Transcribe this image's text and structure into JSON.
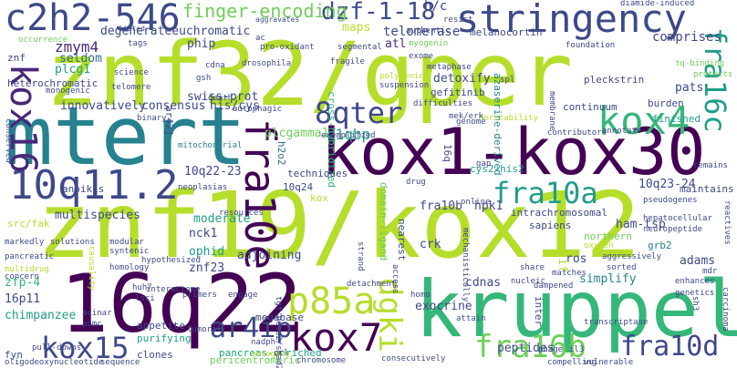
{
  "colors": {
    "background": "#ffffff",
    "palette": [
      "#440154",
      "#482878",
      "#3e4989",
      "#31688e",
      "#26828e",
      "#1f9e89",
      "#35b779",
      "#6ece58",
      "#b5de2b",
      "#fde725"
    ]
  },
  "words": [
    {
      "text": "znf32/gper",
      "color": "#b5de2b"
    },
    {
      "text": "znf19/kox12",
      "color": "#b5de2b"
    },
    {
      "text": "mtert",
      "color": "#26828e"
    },
    {
      "text": "kox1-kox30",
      "color": "#440154"
    },
    {
      "text": "16q22",
      "color": "#440154"
    },
    {
      "text": "kruppel",
      "color": "#35b779"
    },
    {
      "text": "stringency",
      "color": "#3e4989"
    },
    {
      "text": "c2h2-546",
      "color": "#3e4989"
    },
    {
      "text": "10q11.2",
      "color": "#3e4989"
    },
    {
      "text": "fra10e",
      "color": "#440154"
    },
    {
      "text": "kox16",
      "color": "#482878"
    },
    {
      "text": "fra16c",
      "color": "#1f9e89"
    },
    {
      "text": "kox4",
      "color": "#35b779"
    },
    {
      "text": "8qter",
      "color": "#3e4989"
    },
    {
      "text": "fra10a",
      "color": "#1f9e89"
    },
    {
      "text": "p85a",
      "color": "#b5de2b"
    },
    {
      "text": "kox15",
      "color": "#3e4989"
    },
    {
      "text": "kox7",
      "color": "#440154"
    },
    {
      "text": "ar4ip",
      "color": "#3e4989"
    },
    {
      "text": "dgki",
      "color": "#b5de2b"
    },
    {
      "text": "fra16b",
      "color": "#6ece58"
    },
    {
      "text": "fra10d",
      "color": "#3e4989"
    },
    {
      "text": "dzf-1-18",
      "color": "#3e4989"
    },
    {
      "text": "finger-encoding",
      "color": "#6ece58"
    },
    {
      "text": "zmym4",
      "color": "#482878"
    },
    {
      "text": "degenerateeuchromatic",
      "color": "#3e4989"
    },
    {
      "text": "phip",
      "color": "#3e4989"
    },
    {
      "text": "h/c",
      "color": "#3e4989"
    },
    {
      "text": "telomerase",
      "color": "#3e4989"
    },
    {
      "text": "melanocortin",
      "color": "#3e4989"
    },
    {
      "text": "comprises",
      "color": "#3e4989"
    },
    {
      "text": "plcg1",
      "color": "#1f9e89"
    },
    {
      "text": "seldom",
      "color": "#31688e"
    },
    {
      "text": "swiss-prot",
      "color": "#3e4989"
    },
    {
      "text": "atl",
      "color": "#482878"
    },
    {
      "text": "maps",
      "color": "#b5de2b"
    },
    {
      "text": "detoxify",
      "color": "#3e4989"
    },
    {
      "text": "gefitinib",
      "color": "#3e4989"
    },
    {
      "text": "pleckstrin",
      "color": "#3e4989"
    },
    {
      "text": "pats",
      "color": "#3e4989"
    },
    {
      "text": "innovatively",
      "color": "#3e4989"
    },
    {
      "text": "consensus",
      "color": "#3e4989"
    },
    {
      "text": "his/cys",
      "color": "#3e4989"
    },
    {
      "text": "cross-hybridized",
      "color": "#35b779"
    },
    {
      "text": "azaserine-derived",
      "color": "#26828e"
    },
    {
      "text": "continuum",
      "color": "#3e4989"
    },
    {
      "text": "burden",
      "color": "#3e4989"
    },
    {
      "text": "finished",
      "color": "#1f9e89"
    },
    {
      "text": "plcgamma1",
      "color": "#6ece58"
    },
    {
      "text": "c1qbp",
      "color": "#1f9e89"
    },
    {
      "text": "10q22-23",
      "color": "#3e4989"
    },
    {
      "text": "h2o2",
      "color": "#31688e"
    },
    {
      "text": "cys2-his2",
      "color": "#1f9e89"
    },
    {
      "text": "10q23-24",
      "color": "#3e4989"
    },
    {
      "text": "maintains",
      "color": "#3e4989"
    },
    {
      "text": "multispecies",
      "color": "#3e4989"
    },
    {
      "text": "moderate",
      "color": "#1f9e89"
    },
    {
      "text": "fra10b",
      "color": "#3e4989"
    },
    {
      "text": "hpk1",
      "color": "#3e4989"
    },
    {
      "text": "intrachromosomal",
      "color": "#3e4989"
    },
    {
      "text": "sapiens",
      "color": "#3e4989"
    },
    {
      "text": "nck1",
      "color": "#3e4989"
    },
    {
      "text": "ophid",
      "color": "#1f9e89"
    },
    {
      "text": "znf23",
      "color": "#3e4989"
    },
    {
      "text": "adjoining",
      "color": "#3e4989"
    },
    {
      "text": "crk",
      "color": "#3e4989"
    },
    {
      "text": "ham-tsp",
      "color": "#3e4989"
    },
    {
      "text": "grb2",
      "color": "#26828e"
    },
    {
      "text": "northern",
      "color": "#6ece58"
    },
    {
      "text": "ros",
      "color": "#3e4989"
    },
    {
      "text": "adams",
      "color": "#3e4989"
    },
    {
      "text": "motif",
      "color": "#b5de2b"
    },
    {
      "text": "cdnas",
      "color": "#3e4989"
    },
    {
      "text": "exocrine",
      "color": "#3e4989"
    },
    {
      "text": "simplify",
      "color": "#26828e"
    },
    {
      "text": "zfp-4",
      "color": "#35b779"
    },
    {
      "text": "16p11",
      "color": "#3e4989"
    },
    {
      "text": "chimpanzee",
      "color": "#1f9e89"
    },
    {
      "text": "megabase",
      "color": "#3e4989"
    },
    {
      "text": "pancreas-enriched",
      "color": "#1f9e89"
    },
    {
      "text": "peptides",
      "color": "#3e4989"
    },
    {
      "text": "appetite",
      "color": "#3e4989"
    },
    {
      "text": "purifying",
      "color": "#1f9e89"
    },
    {
      "text": "clones",
      "color": "#3e4989"
    },
    {
      "text": "pericentromeric",
      "color": "#6ece58"
    },
    {
      "text": "fyn",
      "color": "#3e4989"
    },
    {
      "text": "anoikis",
      "color": "#3e4989"
    },
    {
      "text": "src/fak",
      "color": "#b5de2b"
    },
    {
      "text": "10q24",
      "color": "#3e4989"
    },
    {
      "text": "kox",
      "color": "#b5de2b"
    },
    {
      "text": "nearest",
      "color": "#3e4989"
    },
    {
      "text": "domain-ligand",
      "color": "#6ece58"
    },
    {
      "text": "techniques",
      "color": "#3e4989"
    },
    {
      "text": "heterochromatic",
      "color": "#3e4989"
    },
    {
      "text": "znf",
      "color": "#3e4989"
    },
    {
      "text": "monogenic",
      "color": "#3e4989"
    },
    {
      "text": "occurrence",
      "color": "#6ece58"
    },
    {
      "text": "aggravates",
      "color": "#3e4989"
    },
    {
      "text": "diamide-induced",
      "color": "#3e4989"
    },
    {
      "text": "resist",
      "color": "#3e4989"
    },
    {
      "text": "listed",
      "color": "#3e4989"
    },
    {
      "text": "pro-oxidant",
      "color": "#3e4989"
    },
    {
      "text": "segmental",
      "color": "#3e4989"
    },
    {
      "text": "exome",
      "color": "#3e4989"
    },
    {
      "text": "myogenin",
      "color": "#6ece58"
    },
    {
      "text": "foundation",
      "color": "#3e4989"
    },
    {
      "text": "tq-binding",
      "color": "#6ece58"
    },
    {
      "text": "protects",
      "color": "#6ece58"
    },
    {
      "text": "polygenic",
      "color": "#b5de2b"
    },
    {
      "text": "suspension",
      "color": "#3e4989"
    },
    {
      "text": "metaphase",
      "color": "#3e4989"
    },
    {
      "text": "drosophila",
      "color": "#3e4989"
    },
    {
      "text": "fragile",
      "color": "#3e4989"
    },
    {
      "text": "science",
      "color": "#3e4989"
    },
    {
      "text": "telomere",
      "color": "#3e4989"
    },
    {
      "text": "death",
      "color": "#3e4989"
    },
    {
      "text": "autophagic",
      "color": "#3e4989"
    },
    {
      "text": "mitochondrial",
      "color": "#26828e"
    },
    {
      "text": "neoplasias",
      "color": "#3e4989"
    },
    {
      "text": "difficulties",
      "color": "#3e4989"
    },
    {
      "text": "heritability",
      "color": "#b5de2b"
    },
    {
      "text": "contributors",
      "color": "#3e4989"
    },
    {
      "text": "annotate",
      "color": "#3e4989"
    },
    {
      "text": "remains",
      "color": "#3e4989"
    },
    {
      "text": "exemplified",
      "color": "#3e4989"
    },
    {
      "text": "gap",
      "color": "#3e4989"
    },
    {
      "text": "resources",
      "color": "#3e4989"
    },
    {
      "text": "solutions",
      "color": "#3e4989"
    },
    {
      "text": "markedly",
      "color": "#3e4989"
    },
    {
      "text": "pancreatic",
      "color": "#3e4989"
    },
    {
      "text": "multidrug",
      "color": "#b5de2b"
    },
    {
      "text": "concern",
      "color": "#3e4989"
    },
    {
      "text": "causality",
      "color": "#b5de2b"
    },
    {
      "text": "modular",
      "color": "#3e4989"
    },
    {
      "text": "syntenic",
      "color": "#3e4989"
    },
    {
      "text": "homology",
      "color": "#3e4989"
    },
    {
      "text": "hypothesized",
      "color": "#3e4989"
    },
    {
      "text": "online",
      "color": "#3e4989"
    },
    {
      "text": "strand",
      "color": "#3e4989"
    },
    {
      "text": "hepatocellular",
      "color": "#3e4989"
    },
    {
      "text": "neuropeptide",
      "color": "#3e4989"
    },
    {
      "text": "oxygen",
      "color": "#b5de2b"
    },
    {
      "text": "aggressively",
      "color": "#3e4989"
    },
    {
      "text": "sorted",
      "color": "#3e4989"
    },
    {
      "text": "pseudogenes",
      "color": "#3e4989"
    },
    {
      "text": "reactives",
      "color": "#3e4989"
    },
    {
      "text": "mechanistically",
      "color": "#3e4989"
    },
    {
      "text": "share",
      "color": "#3e4989"
    },
    {
      "text": "nucleic",
      "color": "#3e4989"
    },
    {
      "text": "matches",
      "color": "#3e4989"
    },
    {
      "text": "acinar",
      "color": "#3e4989"
    },
    {
      "text": "pomc",
      "color": "#3e4989"
    },
    {
      "text": "interactome",
      "color": "#3e4989"
    },
    {
      "text": "primers",
      "color": "#3e4989"
    },
    {
      "text": "engage",
      "color": "#3e4989"
    },
    {
      "text": "huh7",
      "color": "#3e4989"
    },
    {
      "text": "loci",
      "color": "#3e4989"
    },
    {
      "text": "detachment",
      "color": "#3e4989"
    },
    {
      "text": "access",
      "color": "#3e4989"
    },
    {
      "text": "homo",
      "color": "#3e4989"
    },
    {
      "text": "dampened",
      "color": "#3e4989"
    },
    {
      "text": "enhances",
      "color": "#3e4989"
    },
    {
      "text": "genetics",
      "color": "#3e4989"
    },
    {
      "text": "mdr",
      "color": "#3e4989"
    },
    {
      "text": "carcinoma",
      "color": "#3e4989"
    },
    {
      "text": "sh3",
      "color": "#3e4989"
    },
    {
      "text": "transcriptase",
      "color": "#3e4989"
    },
    {
      "text": "attain",
      "color": "#3e4989"
    },
    {
      "text": "tgf-beta2/smad2",
      "color": "#3e4989"
    },
    {
      "text": "tumoral",
      "color": "#3e4989"
    },
    {
      "text": "nadph",
      "color": "#3e4989"
    },
    {
      "text": "ontogeny",
      "color": "#b5de2b"
    },
    {
      "text": "chromosome",
      "color": "#3e4989"
    },
    {
      "text": "consecutively",
      "color": "#3e4989"
    },
    {
      "text": "pull-downs",
      "color": "#3e4989"
    },
    {
      "text": "oligodeoxynucleotide",
      "color": "#3e4989"
    },
    {
      "text": "sequence",
      "color": "#3e4989"
    },
    {
      "text": "ccl",
      "color": "#3e4989"
    },
    {
      "text": "phage",
      "color": "#3e4989"
    },
    {
      "text": "il3",
      "color": "#3e4989"
    },
    {
      "text": "compelling",
      "color": "#3e4989"
    },
    {
      "text": "vulnerable",
      "color": "#3e4989"
    },
    {
      "text": "drug",
      "color": "#3e4989"
    },
    {
      "text": "16q",
      "color": "#3e4989"
    },
    {
      "text": "ar42j",
      "color": "#3e4989"
    },
    {
      "text": "binary",
      "color": "#3e4989"
    },
    {
      "text": "cdna",
      "color": "#3e4989"
    },
    {
      "text": "gsh",
      "color": "#3e4989"
    },
    {
      "text": "ac",
      "color": "#3e4989"
    },
    {
      "text": "spl",
      "color": "#3e4989"
    },
    {
      "text": "tags",
      "color": "#3e4989"
    },
    {
      "text": "conserved",
      "color": "#3e4989"
    },
    {
      "text": "membrane",
      "color": "#3e4989"
    },
    {
      "text": "authentic",
      "color": "#3e4989"
    },
    {
      "text": "genome",
      "color": "#3e4989"
    },
    {
      "text": "mek/erk",
      "color": "#3e4989"
    },
    {
      "text": "inter",
      "color": "#3e4989"
    }
  ]
}
